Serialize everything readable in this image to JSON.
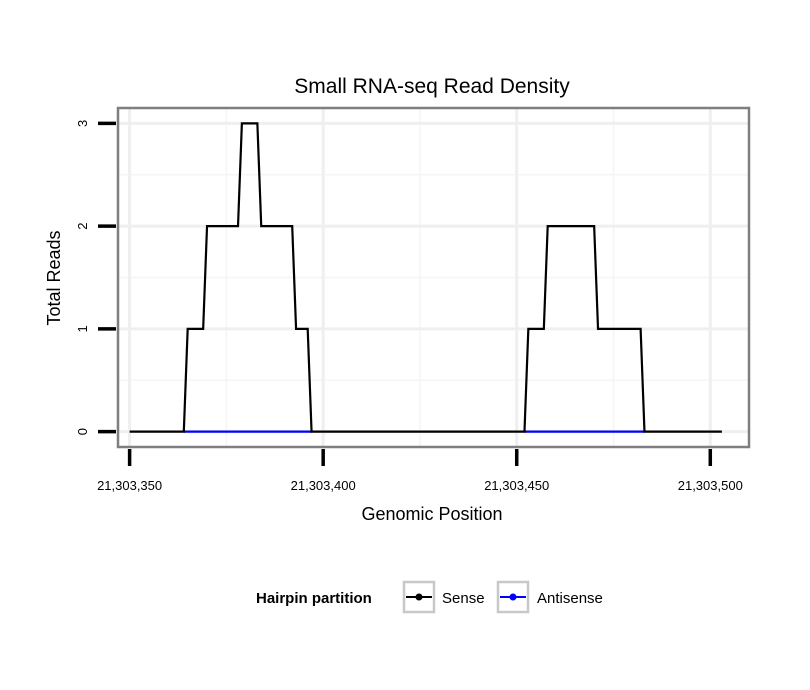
{
  "chart_data": {
    "type": "line",
    "title": "Small RNA-seq Read Density",
    "xlabel": "Genomic Position",
    "ylabel": "Total Reads",
    "xlim": [
      21303347,
      21303510
    ],
    "ylim": [
      -0.15,
      3.15
    ],
    "x_ticks": [
      {
        "value": 21303350,
        "label": "21,303,350"
      },
      {
        "value": 21303400,
        "label": "21,303,400"
      },
      {
        "value": 21303450,
        "label": "21,303,450"
      },
      {
        "value": 21303500,
        "label": "21,303,500"
      }
    ],
    "y_ticks": [
      {
        "value": 0,
        "label": "0"
      },
      {
        "value": 1,
        "label": "1"
      },
      {
        "value": 2,
        "label": "2"
      },
      {
        "value": 3,
        "label": "3"
      }
    ],
    "grid": true,
    "legend": {
      "title": "Hairpin partition",
      "position": "bottom",
      "entries": [
        {
          "name": "Sense",
          "color": "#000000"
        },
        {
          "name": "Antisense",
          "color": "#0000ff"
        }
      ]
    },
    "series": [
      {
        "name": "Sense",
        "color": "#000000",
        "points": [
          [
            21303350,
            0
          ],
          [
            21303364,
            0
          ],
          [
            21303365,
            1
          ],
          [
            21303369,
            1
          ],
          [
            21303370,
            2
          ],
          [
            21303378,
            2
          ],
          [
            21303379,
            3
          ],
          [
            21303383,
            3
          ],
          [
            21303384,
            2
          ],
          [
            21303392,
            2
          ],
          [
            21303393,
            1
          ],
          [
            21303396,
            1
          ],
          [
            21303397,
            0
          ],
          [
            21303452,
            0
          ],
          [
            21303453,
            1
          ],
          [
            21303457,
            1
          ],
          [
            21303458,
            2
          ],
          [
            21303470,
            2
          ],
          [
            21303471,
            1
          ],
          [
            21303482,
            1
          ],
          [
            21303483,
            0
          ],
          [
            21303503,
            0
          ]
        ]
      },
      {
        "name": "Antisense",
        "color": "#0000ff",
        "points": [
          [
            21303364,
            0
          ],
          [
            21303397,
            0
          ],
          [
            21303452,
            0
          ],
          [
            21303483,
            0
          ]
        ]
      }
    ]
  }
}
